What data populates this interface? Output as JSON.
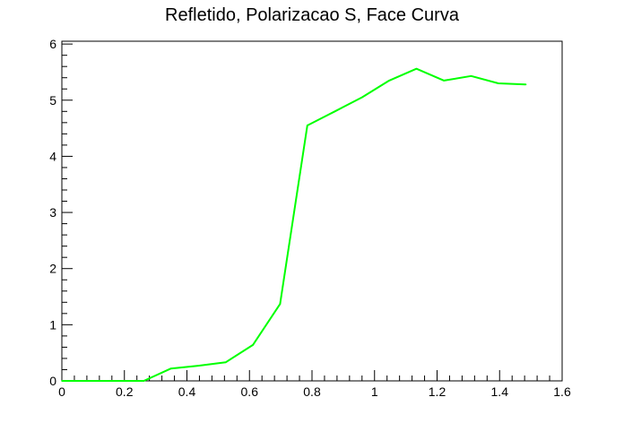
{
  "chart_data": {
    "type": "line",
    "title": "Refletido, Polarizacao S, Face Curva",
    "xlabel": "",
    "ylabel": "",
    "xlim": [
      0,
      1.6
    ],
    "ylim": [
      0,
      6.05
    ],
    "x_ticks": [
      0,
      0.2,
      0.4,
      0.6,
      0.8,
      1.0,
      1.2,
      1.4,
      1.6
    ],
    "x_tick_labels": [
      "0",
      "0.2",
      "0.4",
      "0.6",
      "0.8",
      "1",
      "1.2",
      "1.4",
      "1.6"
    ],
    "y_ticks": [
      0,
      1,
      2,
      3,
      4,
      5,
      6
    ],
    "y_tick_labels": [
      "0",
      "1",
      "2",
      "3",
      "4",
      "5",
      "6"
    ],
    "grid": false,
    "legend": "none",
    "series": [
      {
        "color": "#00ff00",
        "x": [
          0.0,
          0.087,
          0.175,
          0.262,
          0.349,
          0.436,
          0.524,
          0.611,
          0.698,
          0.785,
          0.873,
          0.96,
          1.047,
          1.134,
          1.222,
          1.309,
          1.396,
          1.484
        ],
        "y": [
          0.0,
          0.0,
          0.0,
          0.0,
          0.22,
          0.27,
          0.33,
          0.64,
          1.37,
          4.55,
          4.8,
          5.05,
          5.35,
          5.56,
          5.35,
          5.43,
          5.3,
          5.28
        ]
      }
    ]
  }
}
